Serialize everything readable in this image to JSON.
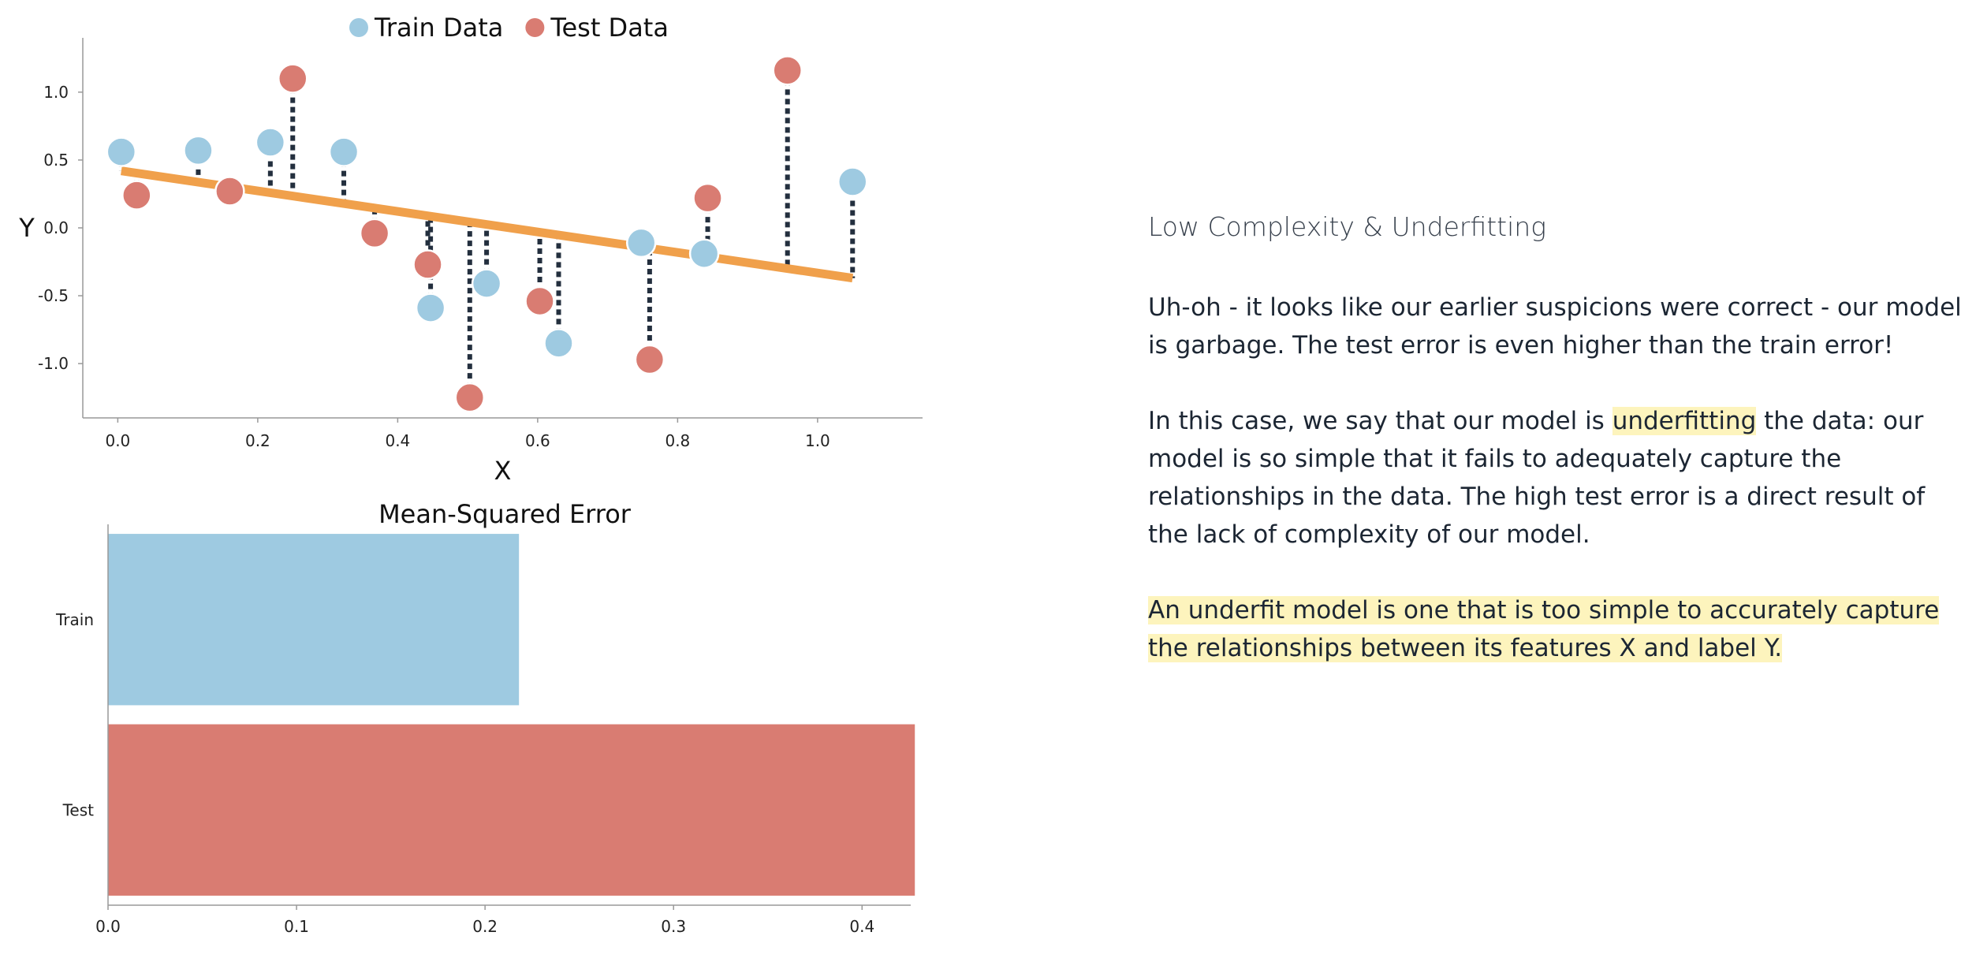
{
  "chart_data": [
    {
      "type": "scatter",
      "title": "",
      "xlabel": "X",
      "ylabel": "Y",
      "xlim": [
        -0.05,
        1.15
      ],
      "ylim": [
        -1.4,
        1.4
      ],
      "xticks": [
        0.0,
        0.2,
        0.4,
        0.6,
        0.8,
        1.0
      ],
      "yticks": [
        1.0,
        0.5,
        0.0,
        -0.5,
        -1.0
      ],
      "xtick_labels": [
        "0.0",
        "0.2",
        "0.4",
        "0.6",
        "0.8",
        "1.0"
      ],
      "ytick_labels": [
        "1.0",
        "0.5",
        "0.0",
        "-0.5",
        "-1.0"
      ],
      "legend": {
        "position": "top",
        "entries": [
          "Train Data",
          "Test Data"
        ]
      },
      "regression_line": {
        "x": [
          0.005,
          1.05
        ],
        "y": [
          0.42,
          -0.37
        ]
      },
      "series": [
        {
          "name": "Train Data",
          "color": "#9ecae1",
          "points": [
            {
              "x": 0.005,
              "y": 0.56
            },
            {
              "x": 0.115,
              "y": 0.57
            },
            {
              "x": 0.218,
              "y": 0.63
            },
            {
              "x": 0.323,
              "y": 0.56
            },
            {
              "x": 0.447,
              "y": -0.59
            },
            {
              "x": 0.527,
              "y": -0.41
            },
            {
              "x": 0.63,
              "y": -0.85
            },
            {
              "x": 0.748,
              "y": -0.11
            },
            {
              "x": 0.838,
              "y": -0.19
            },
            {
              "x": 1.05,
              "y": 0.34
            }
          ]
        },
        {
          "name": "Test Data",
          "color": "#d97c72",
          "points": [
            {
              "x": 0.027,
              "y": 0.24
            },
            {
              "x": 0.16,
              "y": 0.27
            },
            {
              "x": 0.25,
              "y": 1.1
            },
            {
              "x": 0.367,
              "y": -0.04
            },
            {
              "x": 0.443,
              "y": -0.27
            },
            {
              "x": 0.503,
              "y": -1.25
            },
            {
              "x": 0.603,
              "y": -0.54
            },
            {
              "x": 0.76,
              "y": -0.97
            },
            {
              "x": 0.843,
              "y": 0.22
            },
            {
              "x": 0.957,
              "y": 1.16
            }
          ]
        }
      ]
    },
    {
      "type": "bar",
      "orientation": "horizontal",
      "title": "Mean-Squared Error",
      "categories": [
        "Train",
        "Test"
      ],
      "values": [
        0.218,
        0.428
      ],
      "colors": [
        "#9ecae1",
        "#d97c72"
      ],
      "xlim": [
        0,
        0.43
      ],
      "xticks": [
        0.0,
        0.1,
        0.2,
        0.3,
        0.4
      ],
      "xtick_labels": [
        "0.0",
        "0.1",
        "0.2",
        "0.3",
        "0.4"
      ]
    }
  ],
  "colors": {
    "line": "#f0a04b",
    "residual": "#232f3e",
    "highlight": "#fdf4bd"
  },
  "article": {
    "title": "Low Complexity & Underfitting",
    "p1": "Uh-oh - it looks like our earlier suspicions were correct - our model is garbage. The test error is even higher than the train error!",
    "p2_before": "In this case, we say that our model is ",
    "p2_highlight": "underfitting",
    "p2_after": " the data: our model is so simple that it fails to adequately capture the relationships in the data. The high test error is a direct result of the lack of complexity of our model.",
    "p3": "An underfit model is one that is too simple to accurately capture the relationships between its features X and label Y."
  }
}
